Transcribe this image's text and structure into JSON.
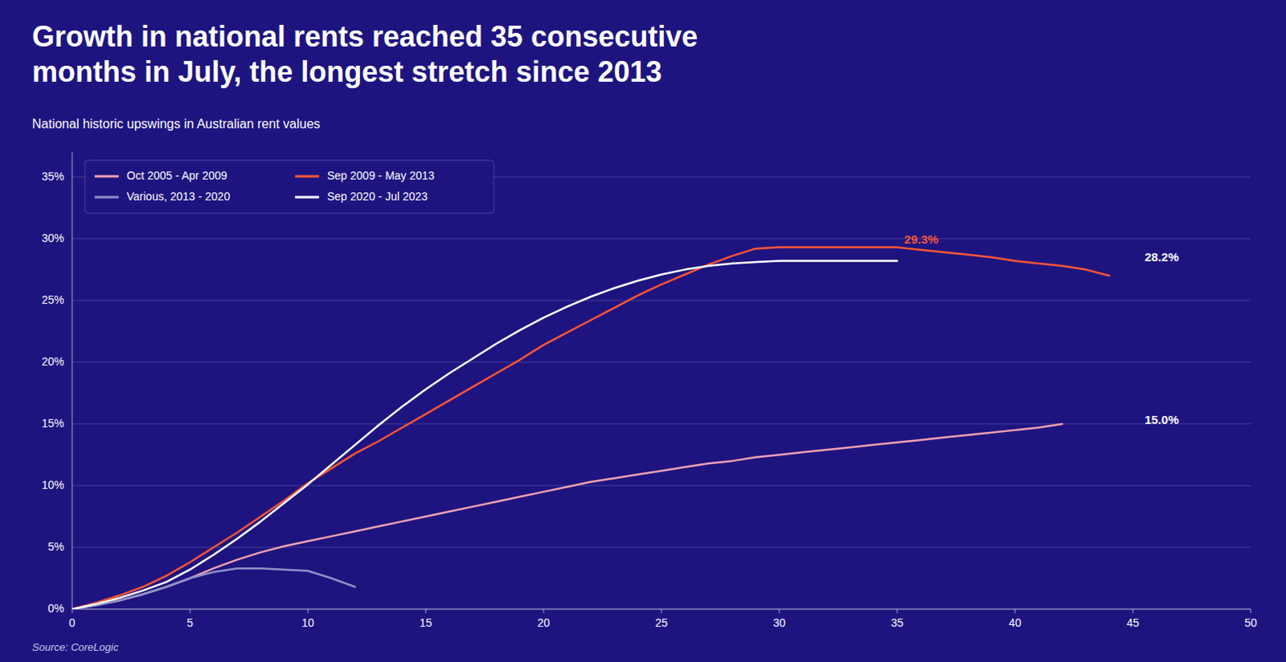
{
  "chart_data": {
    "type": "line",
    "title": "Growth in national rents reached 35 consecutive\nmonths in July, the longest stretch since 2013",
    "subtitle": "National historic upswings in Australian rent values",
    "source": "Source: CoreLogic",
    "xlim": [
      0,
      50
    ],
    "ylim": [
      0,
      0.37
    ],
    "xticks": [
      0,
      5,
      10,
      15,
      20,
      25,
      30,
      35,
      40,
      45,
      50
    ],
    "yticks": [
      {
        "value": 0.0,
        "label": "0%"
      },
      {
        "value": 0.05,
        "label": "5%"
      },
      {
        "value": 0.1,
        "label": "10%"
      },
      {
        "value": 0.15,
        "label": "15%"
      },
      {
        "value": 0.2,
        "label": "20%"
      },
      {
        "value": 0.25,
        "label": "25%"
      },
      {
        "value": 0.3,
        "label": "30%"
      },
      {
        "value": 0.35,
        "label": "35%"
      }
    ],
    "grid": true,
    "legend": "upper left",
    "series": [
      {
        "name": "Oct 2005 - Apr 2009",
        "color": "#f0a0b0",
        "x": [
          0,
          1,
          2,
          3,
          4,
          5,
          6,
          7,
          8,
          9,
          10,
          11,
          12,
          13,
          14,
          15,
          16,
          17,
          18,
          19,
          20,
          21,
          22,
          23,
          24,
          25,
          26,
          27,
          28,
          29,
          30,
          31,
          32,
          33,
          34,
          35,
          36,
          37,
          38,
          39,
          40,
          41,
          42
        ],
        "values": [
          0.0,
          0.003,
          0.007,
          0.012,
          0.018,
          0.025,
          0.033,
          0.04,
          0.046,
          0.051,
          0.055,
          0.059,
          0.063,
          0.067,
          0.071,
          0.075,
          0.079,
          0.083,
          0.087,
          0.091,
          0.095,
          0.099,
          0.103,
          0.106,
          0.109,
          0.112,
          0.115,
          0.118,
          0.12,
          0.123,
          0.125,
          0.127,
          0.129,
          0.131,
          0.133,
          0.135,
          0.137,
          0.139,
          0.141,
          0.143,
          0.145,
          0.147,
          0.15
        ]
      },
      {
        "name": "Sep 2009 - May 2013",
        "color": "#ff5533",
        "x": [
          0,
          1,
          2,
          3,
          4,
          5,
          6,
          7,
          8,
          9,
          10,
          11,
          12,
          13,
          14,
          15,
          16,
          17,
          18,
          19,
          20,
          21,
          22,
          23,
          24,
          25,
          26,
          27,
          28,
          29,
          30,
          31,
          32,
          33,
          34,
          35,
          36,
          37,
          38,
          39,
          40,
          41,
          42,
          43,
          44
        ],
        "values": [
          0.0,
          0.005,
          0.011,
          0.018,
          0.027,
          0.038,
          0.05,
          0.062,
          0.075,
          0.088,
          0.102,
          0.114,
          0.126,
          0.136,
          0.147,
          0.158,
          0.169,
          0.18,
          0.191,
          0.202,
          0.214,
          0.224,
          0.234,
          0.244,
          0.254,
          0.263,
          0.271,
          0.279,
          0.286,
          0.292,
          0.293,
          0.293,
          0.293,
          0.293,
          0.293,
          0.293,
          0.291,
          0.289,
          0.287,
          0.285,
          0.282,
          0.28,
          0.278,
          0.275,
          0.27
        ]
      },
      {
        "name": "Various, 2013 - 2020",
        "color": "#9090c8",
        "x": [
          0,
          1,
          2,
          3,
          4,
          5,
          6,
          7,
          8,
          9,
          10,
          11,
          12
        ],
        "values": [
          0.0,
          0.003,
          0.007,
          0.012,
          0.018,
          0.025,
          0.03,
          0.033,
          0.033,
          0.032,
          0.031,
          0.025,
          0.018
        ]
      },
      {
        "name": "Sep 2020 - Jul 2023",
        "color": "#ffffff",
        "x": [
          0,
          1,
          2,
          3,
          4,
          5,
          6,
          7,
          8,
          9,
          10,
          11,
          12,
          13,
          14,
          15,
          16,
          17,
          18,
          19,
          20,
          21,
          22,
          23,
          24,
          25,
          26,
          27,
          28,
          29,
          30,
          31,
          32,
          33,
          34,
          35
        ],
        "values": [
          0.0,
          0.004,
          0.009,
          0.015,
          0.022,
          0.032,
          0.044,
          0.057,
          0.071,
          0.086,
          0.101,
          0.117,
          0.133,
          0.149,
          0.164,
          0.178,
          0.191,
          0.203,
          0.215,
          0.226,
          0.236,
          0.245,
          0.253,
          0.26,
          0.266,
          0.271,
          0.275,
          0.278,
          0.28,
          0.281,
          0.282,
          0.282,
          0.282,
          0.282,
          0.282,
          0.282
        ]
      }
    ],
    "annotations": [
      {
        "text": "29.3%",
        "x": 35.3,
        "y": 0.296,
        "color": "#ff5533"
      },
      {
        "text": "28.2%",
        "x": 45.5,
        "y": 0.282,
        "color": "#ffffff"
      },
      {
        "text": "15.0%",
        "x": 45.5,
        "y": 0.15,
        "color": "#ffffff"
      }
    ]
  }
}
